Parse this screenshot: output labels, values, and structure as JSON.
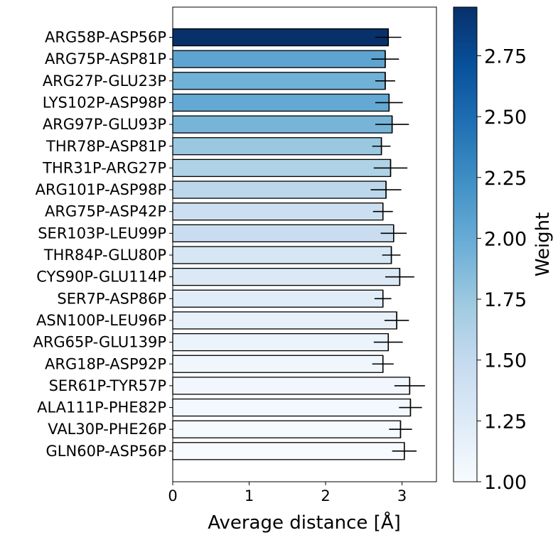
{
  "chart_data": {
    "type": "bar",
    "orientation": "horizontal",
    "title": "",
    "xlabel": "Average distance [Å]",
    "ylabel": "",
    "xlim": [
      0,
      3.45
    ],
    "xticks": [
      "0",
      "1",
      "2",
      "3"
    ],
    "grid": false,
    "colormap": "Blues",
    "colorbar": {
      "label": "Weight",
      "range": [
        1.0,
        2.95
      ],
      "ticks": [
        "1.00",
        "1.25",
        "1.50",
        "1.75",
        "2.00",
        "2.25",
        "2.50",
        "2.75"
      ]
    },
    "bars": [
      {
        "label": "ARG58P-ASP56P",
        "value": 2.82,
        "error": 0.17,
        "weight": 2.95
      },
      {
        "label": "ARG75P-ASP81P",
        "value": 2.78,
        "error": 0.18,
        "weight": 2.06
      },
      {
        "label": "ARG27P-GLU23P",
        "value": 2.78,
        "error": 0.13,
        "weight": 1.95
      },
      {
        "label": "LYS102P-ASP98P",
        "value": 2.83,
        "error": 0.18,
        "weight": 2.02
      },
      {
        "label": "ARG97P-GLU93P",
        "value": 2.87,
        "error": 0.22,
        "weight": 1.92
      },
      {
        "label": "THR78P-ASP81P",
        "value": 2.73,
        "error": 0.12,
        "weight": 1.75
      },
      {
        "label": "THR31P-ARG27P",
        "value": 2.85,
        "error": 0.22,
        "weight": 1.62
      },
      {
        "label": "ARG101P-ASP98P",
        "value": 2.79,
        "error": 0.2,
        "weight": 1.55
      },
      {
        "label": "ARG75P-ASP42P",
        "value": 2.75,
        "error": 0.13,
        "weight": 1.43
      },
      {
        "label": "SER103P-LEU99P",
        "value": 2.89,
        "error": 0.17,
        "weight": 1.45
      },
      {
        "label": "THR84P-GLU80P",
        "value": 2.86,
        "error": 0.12,
        "weight": 1.32
      },
      {
        "label": "CYS90P-GLU114P",
        "value": 2.97,
        "error": 0.19,
        "weight": 1.27
      },
      {
        "label": "SER7P-ASP86P",
        "value": 2.75,
        "error": 0.11,
        "weight": 1.22
      },
      {
        "label": "ASN100P-LEU96P",
        "value": 2.93,
        "error": 0.16,
        "weight": 1.15
      },
      {
        "label": "ARG65P-GLU139P",
        "value": 2.82,
        "error": 0.19,
        "weight": 1.12
      },
      {
        "label": "ARG18P-ASP92P",
        "value": 2.75,
        "error": 0.14,
        "weight": 1.08
      },
      {
        "label": "SER61P-TYR57P",
        "value": 3.1,
        "error": 0.2,
        "weight": 1.06
      },
      {
        "label": "ALA111P-PHE82P",
        "value": 3.11,
        "error": 0.15,
        "weight": 1.04
      },
      {
        "label": "VAL30P-PHE26P",
        "value": 2.98,
        "error": 0.15,
        "weight": 1.02
      },
      {
        "label": "GLN60P-ASP56P",
        "value": 3.03,
        "error": 0.16,
        "weight": 1.0
      }
    ]
  }
}
